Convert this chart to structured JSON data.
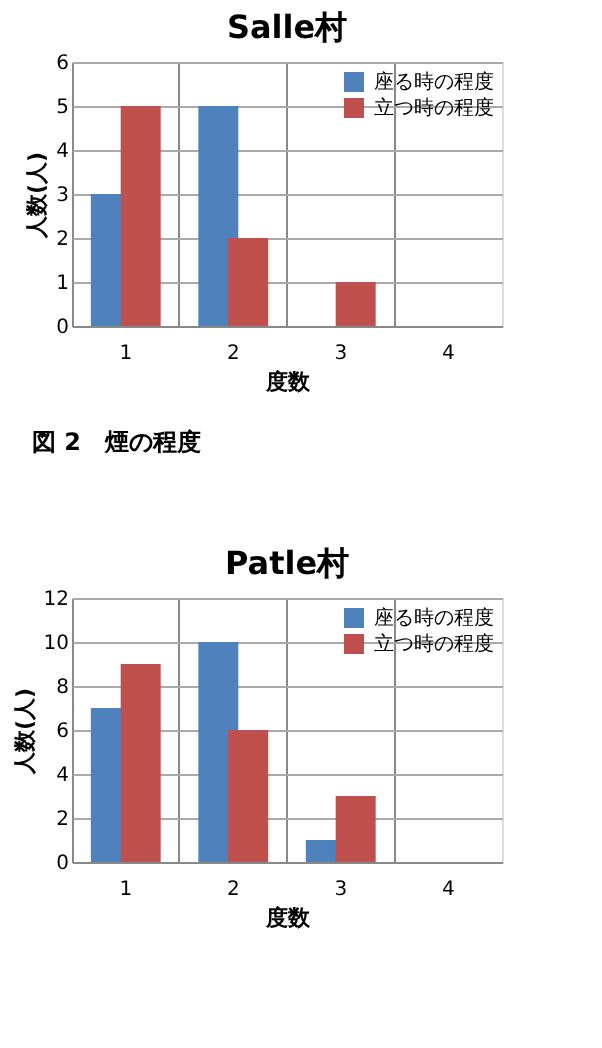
{
  "chart_data": [
    {
      "type": "bar",
      "title": "Salle村",
      "xlabel": "度数",
      "ylabel": "人数(人)",
      "categories": [
        "1",
        "2",
        "3",
        "4"
      ],
      "series": [
        {
          "name": "座る時の程度",
          "color": "#4f81bd",
          "values": [
            3,
            5,
            0,
            0
          ]
        },
        {
          "name": "立つ時の程度",
          "color": "#c0504d",
          "values": [
            5,
            2,
            1,
            0
          ]
        }
      ],
      "ylim": [
        0,
        6
      ],
      "yticks": [
        0,
        1,
        2,
        3,
        4,
        5,
        6
      ],
      "grid": true,
      "legend": "top right",
      "annotations": [
        "図 2　煙の程度"
      ]
    },
    {
      "type": "bar",
      "title": "Patle村",
      "xlabel": "度数",
      "ylabel": "人数(人)",
      "categories": [
        "1",
        "2",
        "3",
        "4"
      ],
      "series": [
        {
          "name": "座る時の程度",
          "color": "#4f81bd",
          "values": [
            7,
            10,
            1,
            0
          ]
        },
        {
          "name": "立つ時の程度",
          "color": "#c0504d",
          "values": [
            9,
            6,
            3,
            0
          ]
        }
      ],
      "ylim": [
        0,
        12
      ],
      "yticks": [
        0,
        2,
        4,
        6,
        8,
        10,
        12
      ],
      "grid": true,
      "legend": "top right"
    }
  ]
}
